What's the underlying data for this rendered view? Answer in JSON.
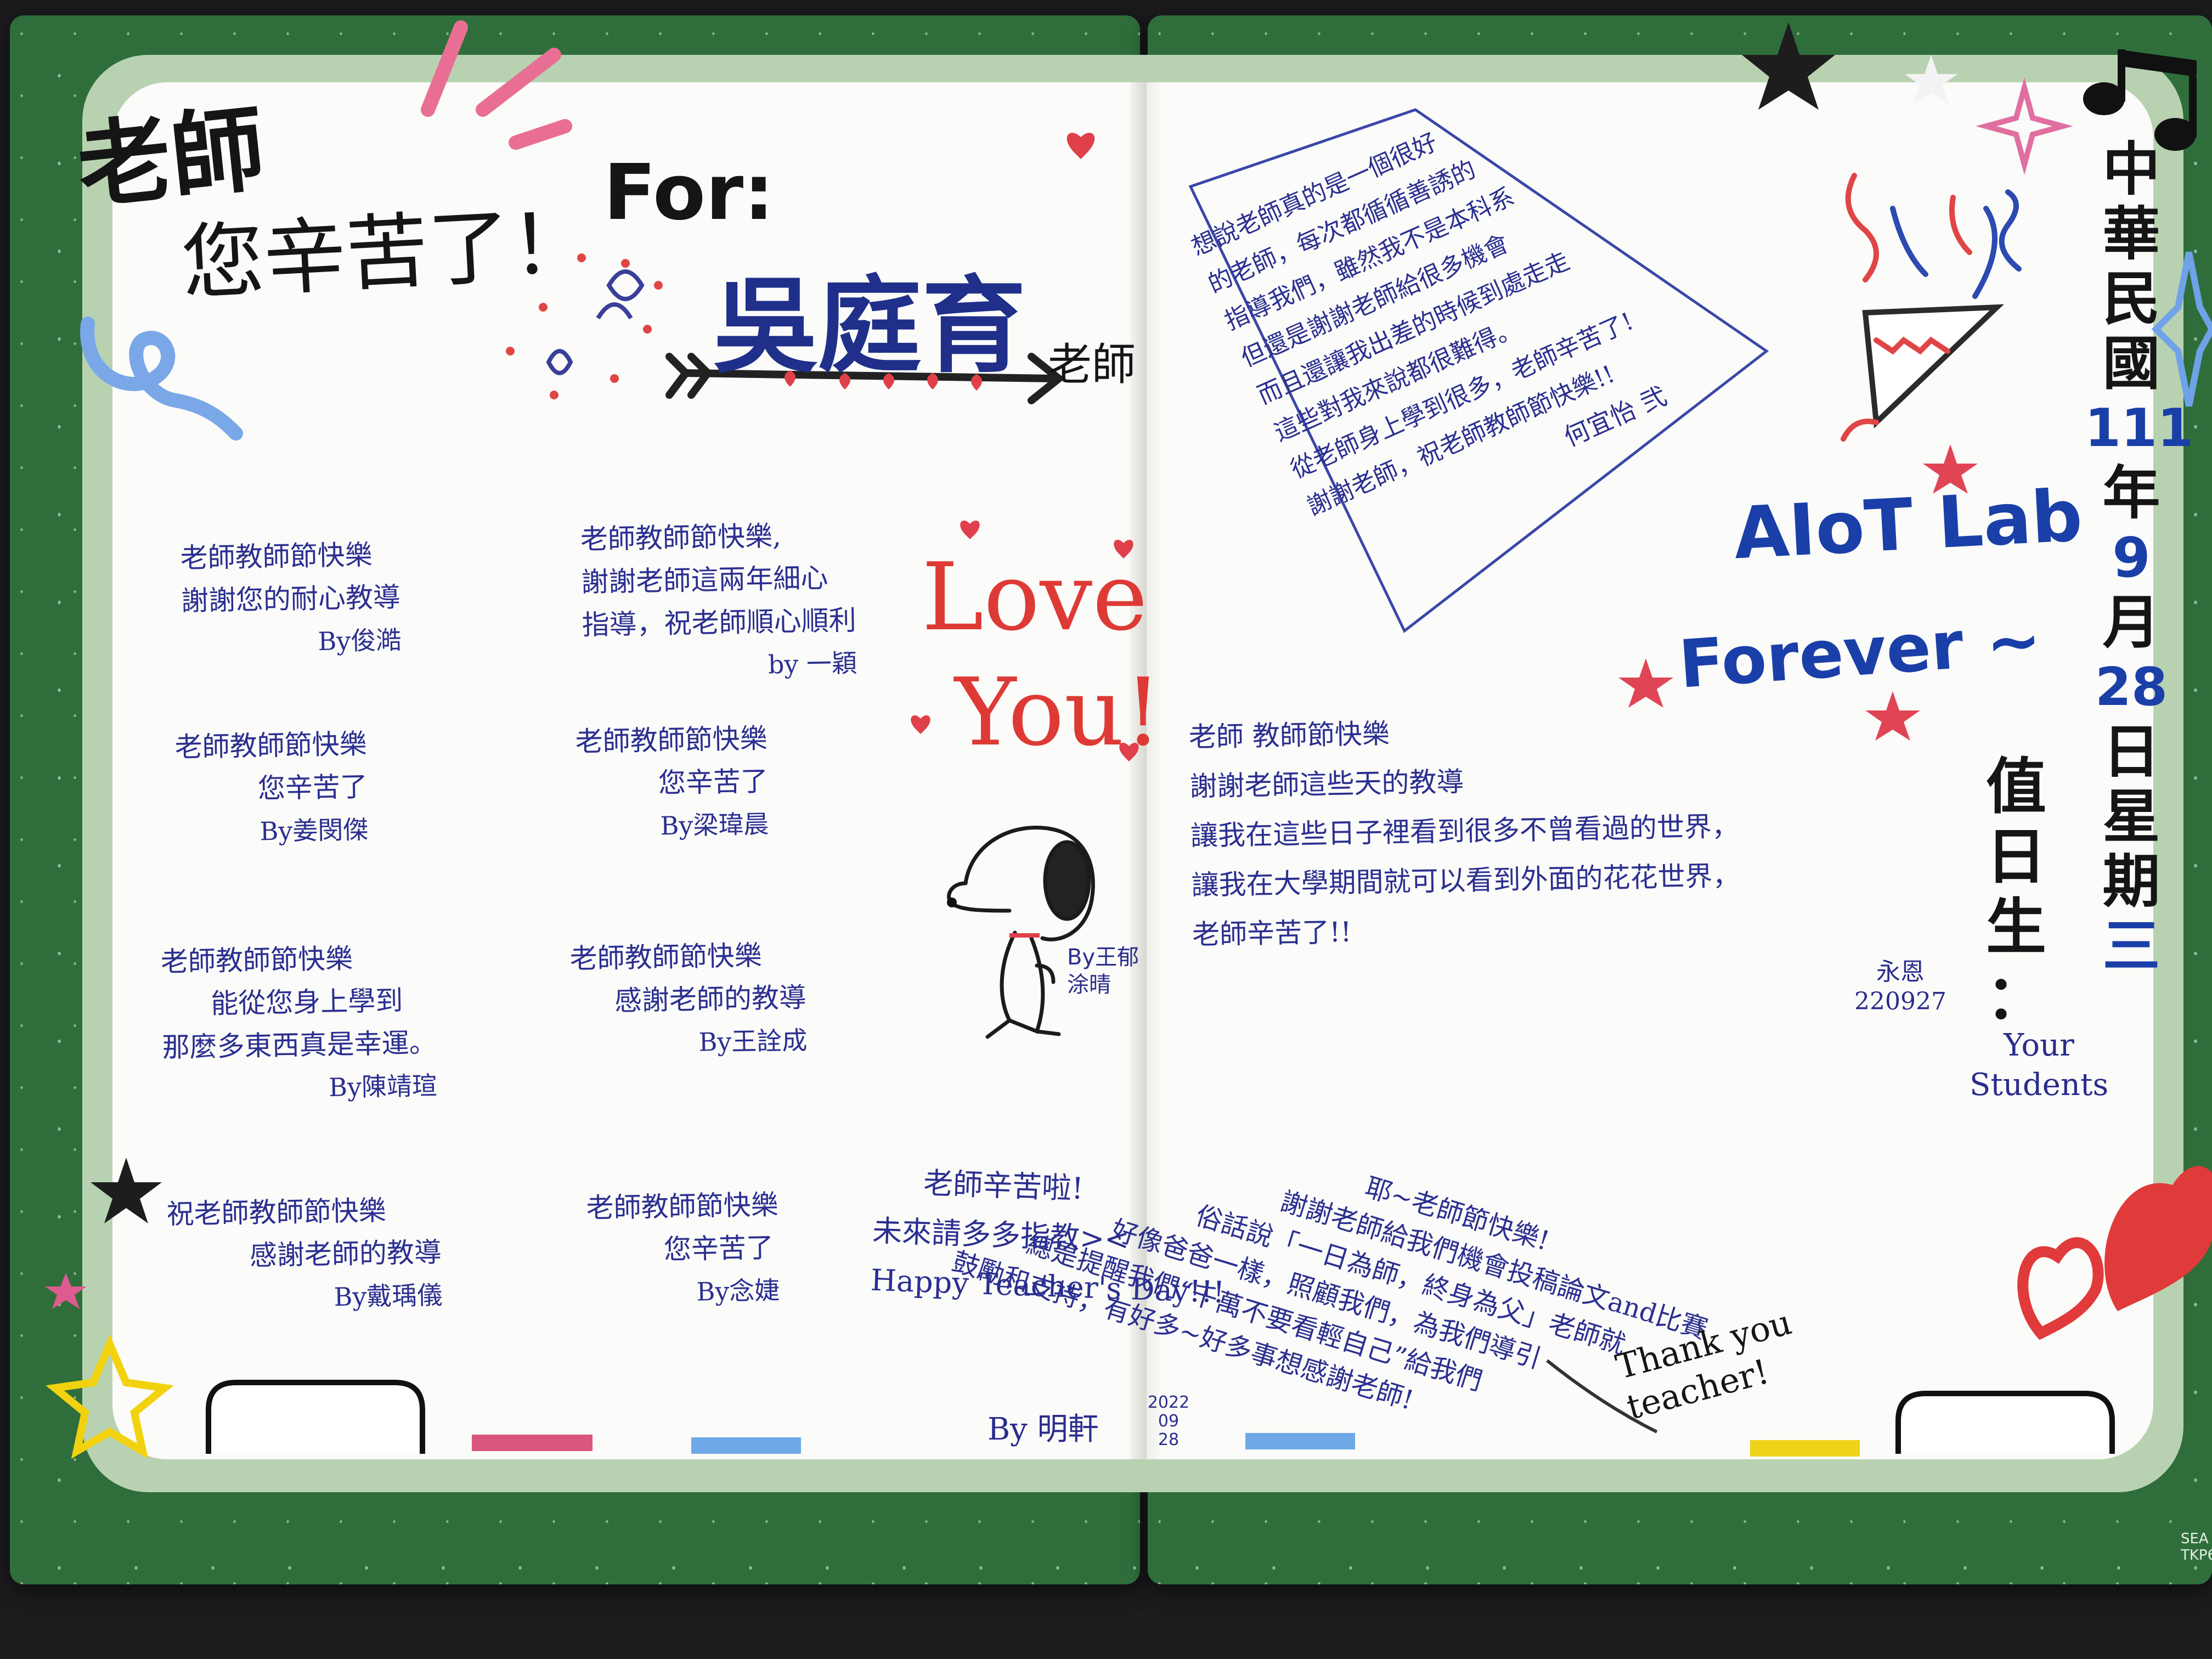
{
  "photo": {
    "subject": "Teacher's Day card (handwritten)",
    "colors": {
      "cover": "#2f6e3b",
      "frame": "#b8d2b1",
      "paper": "#fbfbf9",
      "ink_blue": "#2a2d8c",
      "marker_red": "#de3a35",
      "marker_navy": "#1f2f8a"
    }
  },
  "header": {
    "line1": "老師",
    "line2": "您辛苦了！",
    "for_label": "For:",
    "recipient": "吳庭育",
    "recipient_title": "老師"
  },
  "love": {
    "line1": "Love",
    "line2": "You!"
  },
  "snoopy_signature": {
    "line1": "By王郁",
    "line2": "涂晴"
  },
  "left_messages": [
    {
      "lines": [
        "老師教師節快樂",
        "謝謝您的耐心教導"
      ],
      "sig": "By俊澔"
    },
    {
      "lines": [
        "老師教師節快樂",
        "您辛苦了"
      ],
      "sig": "By姜閔傑"
    },
    {
      "lines": [
        "老師教師節快樂",
        "能從您身上學到",
        "那麼多東西真是幸運。"
      ],
      "sig": "By陳靖瑄"
    },
    {
      "lines": [
        "祝老師教師節快樂",
        "感謝老師的教導"
      ],
      "sig": "By戴瑀儀"
    }
  ],
  "middle_messages": [
    {
      "lines": [
        "老師教師節快樂,",
        "謝謝老師這兩年細心",
        "指導，祝老師順心順利"
      ],
      "sig": "by 一穎"
    },
    {
      "lines": [
        "老師教師節快樂",
        "您辛苦了"
      ],
      "sig": "By梁瑋晨"
    },
    {
      "lines": [
        "老師教師節快樂",
        "感謝老師的教導"
      ],
      "sig": "By王詮成"
    },
    {
      "lines": [
        "老師教師節快樂",
        "您辛苦了"
      ],
      "sig": "By念婕"
    }
  ],
  "top_right_message": {
    "lines": [
      "想說老師真的是一個很好",
      "的老師，每次都循循善誘的",
      "指導我們，雖然我不是本科系",
      "但還是謝謝老師給很多機會",
      "而且還讓我出差的時候到處走走",
      "這些對我來說都很難得。",
      "從老師身上學到很多，老師辛苦了!",
      "謝謝老師，祝老師教師節快樂!!"
    ],
    "sig": "何宜怡 弐"
  },
  "lab": {
    "line1": "AIoT Lab",
    "line2": "Forever ~"
  },
  "right_message": {
    "lines": [
      "老師 教師節快樂",
      "謝謝老師這些天的教導",
      "讓我在這些日子裡看到很多不曾看過的世界，",
      "讓我在大學期間就可以看到外面的花花世界，",
      "老師辛苦了!!"
    ],
    "sig": "永恩",
    "date": "220927"
  },
  "bottom_message": {
    "lines": [
      "老師辛苦啦!",
      "未來請多多指教><",
      "Happy Teacher's Day!!!"
    ],
    "sig": "By 明軒",
    "date": "2022 09 28"
  },
  "diagonal_message": {
    "lines": [
      "耶~老師節快樂!",
      "謝謝老師給我們機會投稿論文and比賽",
      "俗話說「一日為師，終身為父」老師就",
      "好像爸爸一樣，照顧我們，為我們導引",
      "總是提醒我們“千萬不要看輕自己”給我們",
      "鼓勵和支持，有好多~好多事想感謝老師!"
    ],
    "thanks": "Thank you teacher!"
  },
  "date_column": [
    "中",
    "華",
    "民",
    "國",
    "111",
    "年",
    "9",
    "月",
    "28",
    "日",
    "星",
    "期",
    "三"
  ],
  "duty": {
    "chars": [
      "值",
      "日",
      "生",
      "："
    ],
    "signer_line1": "Your",
    "signer_line2": "Students"
  },
  "corner_print": {
    "line1": "SEA",
    "line2": "TKP6"
  }
}
